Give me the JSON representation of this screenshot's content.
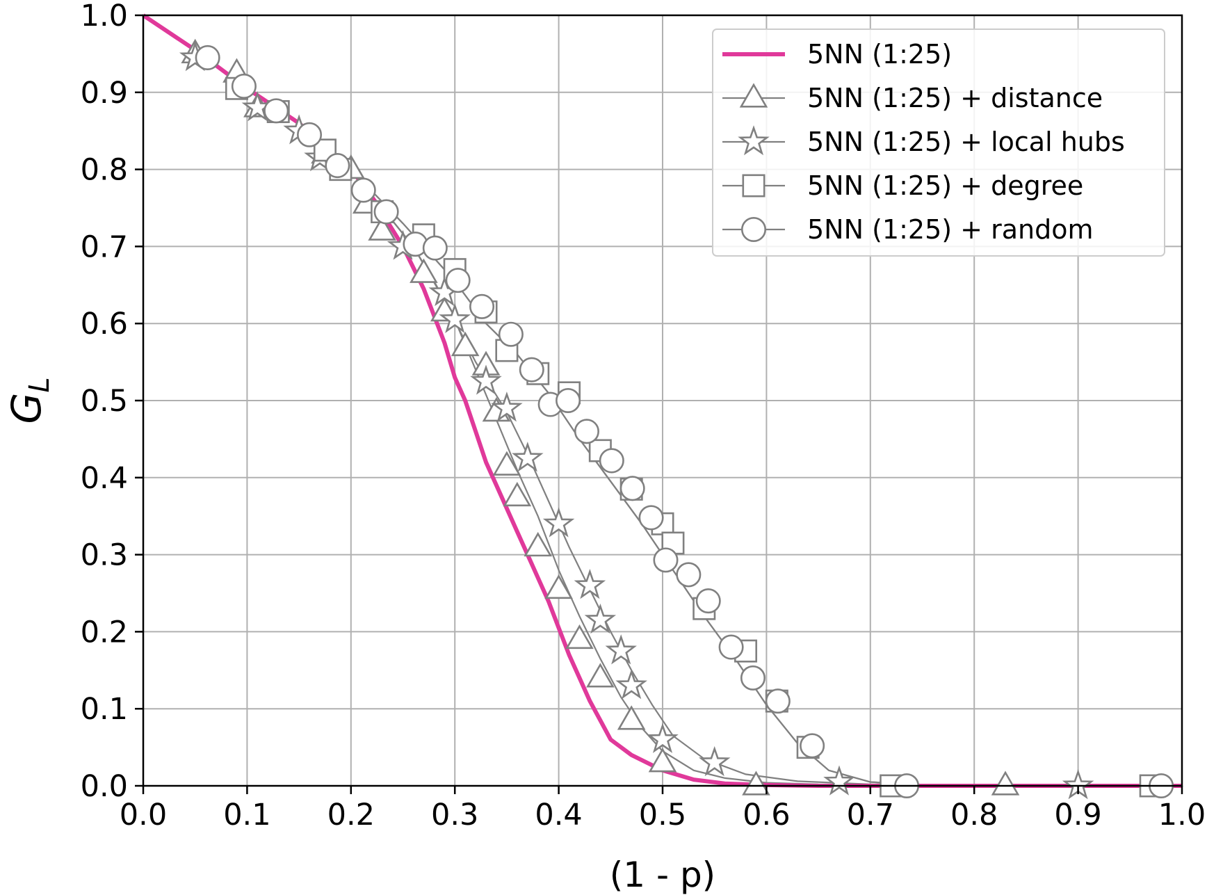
{
  "chart_data": {
    "type": "line",
    "xlabel": "(1 - p)",
    "ylabel": "G",
    "ylabel_subscript": "L",
    "xlim": [
      0.0,
      1.0
    ],
    "ylim": [
      0.0,
      1.0
    ],
    "xticks": [
      "0.0",
      "0.1",
      "0.2",
      "0.3",
      "0.4",
      "0.5",
      "0.6",
      "0.7",
      "0.8",
      "0.9",
      "1.0"
    ],
    "yticks": [
      "0.0",
      "0.1",
      "0.2",
      "0.3",
      "0.4",
      "0.5",
      "0.6",
      "0.7",
      "0.8",
      "0.9",
      "1.0"
    ],
    "grid": true,
    "legend_position": "top-right",
    "colors": {
      "pink": "#e0399a",
      "gray": "#808080"
    },
    "series": [
      {
        "name": "5NN (1:25)",
        "marker": "none",
        "color": "#e0399a",
        "x": [
          0.0,
          0.05,
          0.1,
          0.15,
          0.2,
          0.22,
          0.25,
          0.27,
          0.29,
          0.3,
          0.31,
          0.32,
          0.33,
          0.34,
          0.35,
          0.36,
          0.37,
          0.38,
          0.39,
          0.4,
          0.41,
          0.42,
          0.43,
          0.44,
          0.45,
          0.47,
          0.5,
          0.53,
          0.56,
          0.6,
          0.65,
          1.0
        ],
        "y": [
          1.0,
          0.955,
          0.905,
          0.86,
          0.8,
          0.765,
          0.7,
          0.645,
          0.575,
          0.53,
          0.5,
          0.46,
          0.42,
          0.39,
          0.36,
          0.33,
          0.3,
          0.27,
          0.24,
          0.205,
          0.17,
          0.14,
          0.11,
          0.085,
          0.06,
          0.04,
          0.02,
          0.008,
          0.003,
          0.001,
          0.0,
          0.0
        ]
      },
      {
        "name": "5NN (1:25) + distance",
        "marker": "triangle",
        "color": "#808080",
        "x": [
          0.0,
          0.05,
          0.1,
          0.15,
          0.2,
          0.23,
          0.26,
          0.28,
          0.3,
          0.32,
          0.34,
          0.36,
          0.38,
          0.4,
          0.42,
          0.44,
          0.46,
          0.48,
          0.5,
          0.53,
          0.56,
          0.6,
          0.65,
          1.0
        ],
        "y": [
          1.0,
          0.955,
          0.905,
          0.86,
          0.8,
          0.75,
          0.7,
          0.655,
          0.605,
          0.54,
          0.475,
          0.41,
          0.35,
          0.28,
          0.22,
          0.165,
          0.115,
          0.075,
          0.045,
          0.02,
          0.01,
          0.004,
          0.002,
          0.0
        ]
      },
      {
        "name": "5NN (1:25) + local hubs",
        "marker": "star",
        "color": "#808080",
        "x": [
          0.0,
          0.05,
          0.1,
          0.15,
          0.2,
          0.23,
          0.26,
          0.29,
          0.32,
          0.35,
          0.37,
          0.39,
          0.41,
          0.43,
          0.45,
          0.47,
          0.49,
          0.51,
          0.54,
          0.58,
          0.63,
          0.7,
          1.0
        ],
        "y": [
          1.0,
          0.955,
          0.905,
          0.86,
          0.8,
          0.75,
          0.7,
          0.63,
          0.55,
          0.485,
          0.43,
          0.37,
          0.31,
          0.255,
          0.2,
          0.15,
          0.105,
          0.065,
          0.035,
          0.015,
          0.006,
          0.002,
          0.0
        ]
      },
      {
        "name": "5NN (1:25) + degree",
        "marker": "square",
        "color": "#808080",
        "x": [
          0.0,
          0.05,
          0.1,
          0.15,
          0.2,
          0.25,
          0.3,
          0.33,
          0.36,
          0.39,
          0.42,
          0.45,
          0.48,
          0.51,
          0.54,
          0.57,
          0.6,
          0.63,
          0.66,
          0.7,
          0.75,
          1.0
        ],
        "y": [
          1.0,
          0.955,
          0.905,
          0.86,
          0.8,
          0.73,
          0.655,
          0.6,
          0.56,
          0.51,
          0.45,
          0.395,
          0.34,
          0.28,
          0.22,
          0.165,
          0.105,
          0.055,
          0.02,
          0.005,
          0.001,
          0.0
        ]
      },
      {
        "name": "5NN (1:25) + random",
        "marker": "circle",
        "color": "#808080",
        "x": [
          0.0,
          0.05,
          0.1,
          0.15,
          0.2,
          0.25,
          0.3,
          0.33,
          0.36,
          0.39,
          0.42,
          0.45,
          0.48,
          0.51,
          0.54,
          0.57,
          0.6,
          0.63,
          0.66,
          0.7,
          0.75,
          1.0
        ],
        "y": [
          1.0,
          0.955,
          0.905,
          0.86,
          0.8,
          0.73,
          0.655,
          0.6,
          0.56,
          0.51,
          0.45,
          0.395,
          0.34,
          0.28,
          0.22,
          0.165,
          0.105,
          0.055,
          0.02,
          0.005,
          0.001,
          0.0
        ]
      }
    ],
    "markers": {
      "triangle": [
        [
          0.05,
          0.95
        ],
        [
          0.09,
          0.925
        ],
        [
          0.11,
          0.88
        ],
        [
          0.175,
          0.82
        ],
        [
          0.2,
          0.8
        ],
        [
          0.215,
          0.755
        ],
        [
          0.23,
          0.72
        ],
        [
          0.27,
          0.665
        ],
        [
          0.29,
          0.615
        ],
        [
          0.31,
          0.57
        ],
        [
          0.33,
          0.545
        ],
        [
          0.34,
          0.485
        ],
        [
          0.35,
          0.415
        ],
        [
          0.36,
          0.375
        ],
        [
          0.38,
          0.31
        ],
        [
          0.4,
          0.255
        ],
        [
          0.42,
          0.19
        ],
        [
          0.44,
          0.14
        ],
        [
          0.47,
          0.085
        ],
        [
          0.5,
          0.03
        ],
        [
          0.59,
          0.0
        ],
        [
          0.83,
          0.0
        ]
      ],
      "star": [
        [
          0.05,
          0.945
        ],
        [
          0.11,
          0.88
        ],
        [
          0.15,
          0.85
        ],
        [
          0.17,
          0.815
        ],
        [
          0.25,
          0.7
        ],
        [
          0.29,
          0.64
        ],
        [
          0.3,
          0.605
        ],
        [
          0.33,
          0.525
        ],
        [
          0.35,
          0.49
        ],
        [
          0.37,
          0.425
        ],
        [
          0.4,
          0.34
        ],
        [
          0.43,
          0.26
        ],
        [
          0.44,
          0.215
        ],
        [
          0.46,
          0.175
        ],
        [
          0.47,
          0.13
        ],
        [
          0.5,
          0.06
        ],
        [
          0.55,
          0.03
        ],
        [
          0.67,
          0.005
        ],
        [
          0.9,
          0.0
        ]
      ],
      "square": [
        [
          0.09,
          0.905
        ],
        [
          0.13,
          0.875
        ],
        [
          0.175,
          0.825
        ],
        [
          0.19,
          0.8
        ],
        [
          0.23,
          0.745
        ],
        [
          0.27,
          0.715
        ],
        [
          0.3,
          0.67
        ],
        [
          0.33,
          0.615
        ],
        [
          0.35,
          0.565
        ],
        [
          0.38,
          0.535
        ],
        [
          0.41,
          0.51
        ],
        [
          0.44,
          0.435
        ],
        [
          0.47,
          0.385
        ],
        [
          0.5,
          0.34
        ],
        [
          0.51,
          0.315
        ],
        [
          0.54,
          0.23
        ],
        [
          0.58,
          0.175
        ],
        [
          0.61,
          0.11
        ],
        [
          0.64,
          0.05
        ],
        [
          0.72,
          0.0
        ],
        [
          0.97,
          0.0
        ]
      ],
      "circle": [
        [
          0.062,
          0.945
        ],
        [
          0.097,
          0.908
        ],
        [
          0.128,
          0.876
        ],
        [
          0.16,
          0.845
        ],
        [
          0.187,
          0.805
        ],
        [
          0.212,
          0.773
        ],
        [
          0.234,
          0.745
        ],
        [
          0.262,
          0.703
        ],
        [
          0.281,
          0.698
        ],
        [
          0.303,
          0.656
        ],
        [
          0.326,
          0.622
        ],
        [
          0.354,
          0.586
        ],
        [
          0.374,
          0.54
        ],
        [
          0.392,
          0.495
        ],
        [
          0.409,
          0.5
        ],
        [
          0.427,
          0.46
        ],
        [
          0.451,
          0.422
        ],
        [
          0.471,
          0.386
        ],
        [
          0.489,
          0.348
        ],
        [
          0.503,
          0.293
        ],
        [
          0.525,
          0.274
        ],
        [
          0.544,
          0.24
        ],
        [
          0.566,
          0.18
        ],
        [
          0.587,
          0.14
        ],
        [
          0.611,
          0.11
        ],
        [
          0.644,
          0.052
        ],
        [
          0.735,
          0.0
        ],
        [
          0.98,
          0.0
        ]
      ]
    }
  }
}
